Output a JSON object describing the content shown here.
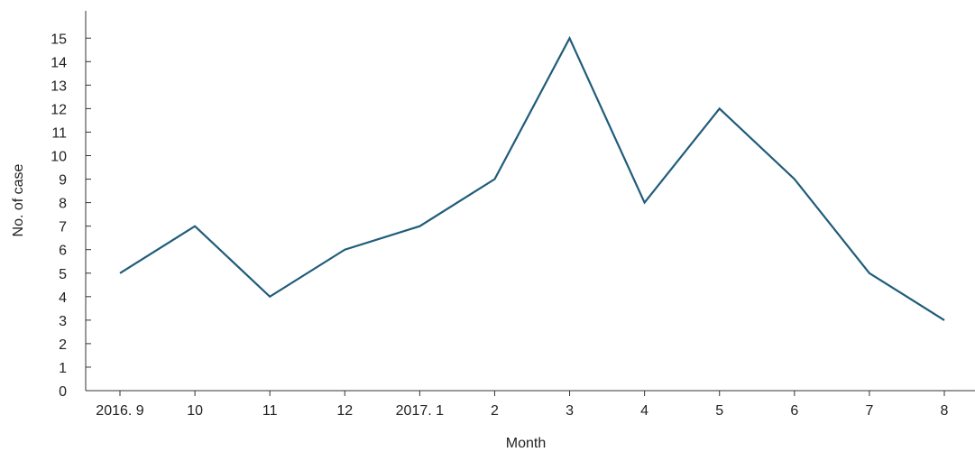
{
  "chart_data": {
    "type": "line",
    "title": "",
    "xlabel": "Month",
    "ylabel": "No. of case",
    "categories": [
      "2016. 9",
      "10",
      "11",
      "12",
      "2017. 1",
      "2",
      "3",
      "4",
      "5",
      "6",
      "7",
      "8"
    ],
    "series": [
      {
        "values": [
          5,
          7,
          4,
          6,
          7,
          9,
          15,
          8,
          12,
          9,
          5,
          3
        ]
      }
    ],
    "ylim": [
      0,
      16
    ],
    "yticks": [
      0,
      1,
      2,
      3,
      4,
      5,
      6,
      7,
      8,
      9,
      10,
      11,
      12,
      13,
      14,
      15
    ],
    "grid": false,
    "legend": "none",
    "colors": {
      "line": "#1f5c79",
      "axis": "#333333"
    }
  }
}
